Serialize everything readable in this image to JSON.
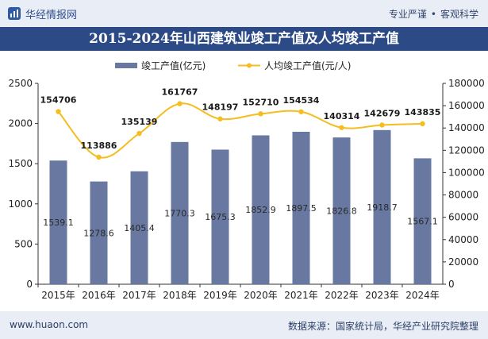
{
  "header": {
    "brand": "华经情报网",
    "slogan_left": "专业严谨",
    "slogan_sep": "•",
    "slogan_right": "客观科学"
  },
  "chart_data": {
    "type": "bar",
    "title": "2015-2024年山西建筑业竣工产值及人均竣工产值",
    "categories": [
      "2015年",
      "2016年",
      "2017年",
      "2018年",
      "2019年",
      "2020年",
      "2021年",
      "2022年",
      "2023年",
      "2024年"
    ],
    "series": [
      {
        "name": "竣工产值(亿元)",
        "type": "bar",
        "axis": "left",
        "color": "#6878a1",
        "values": [
          1539.1,
          1278.6,
          1405.4,
          1770.3,
          1675.3,
          1852.9,
          1897.5,
          1826.8,
          1918.7,
          1567.1
        ]
      },
      {
        "name": "人均竣工产值(元/人)",
        "type": "line",
        "axis": "right",
        "color": "#f5bd1f",
        "values": [
          154706,
          113886,
          135139,
          161767,
          148197,
          152710,
          154534,
          140314,
          142679,
          143835
        ]
      }
    ],
    "y_left": {
      "min": 0,
      "max": 2500,
      "ticks": [
        0,
        500,
        1000,
        1500,
        2000,
        2500
      ]
    },
    "y_right": {
      "min": 0,
      "max": 180000,
      "ticks": [
        0,
        20000,
        40000,
        60000,
        80000,
        100000,
        120000,
        140000,
        160000,
        180000
      ]
    },
    "legend_position": "top",
    "grid": false
  },
  "footer": {
    "site": "www.huaon.com",
    "source": "数据来源：国家统计局，华经产业研究院整理"
  }
}
